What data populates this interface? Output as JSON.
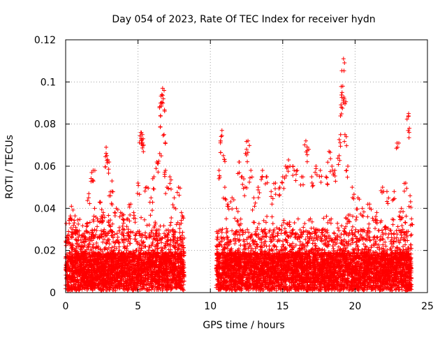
{
  "chart_data": {
    "type": "scatter",
    "title": "Day 054 of 2023, Rate Of TEC Index for receiver hydn",
    "xlabel": "GPS time / hours",
    "ylabel": "ROTI / TECUs",
    "xlim": [
      0,
      25
    ],
    "ylim": [
      0,
      0.12
    ],
    "xticks": [
      0,
      5,
      10,
      15,
      20,
      25
    ],
    "xtick_labels": [
      "0",
      "5",
      "10",
      "15",
      "20",
      "25"
    ],
    "yticks": [
      0,
      0.02,
      0.04,
      0.06,
      0.08,
      0.1,
      0.12
    ],
    "ytick_labels": [
      "0",
      "0.02",
      "0.04",
      "0.06",
      "0.08",
      "0.1",
      "0.12"
    ],
    "grid": true,
    "marker": "+",
    "color": "#ff0000",
    "series": [
      {
        "segments": [
          [
            0.0,
            8.2
          ],
          [
            10.4,
            23.9
          ]
        ],
        "points": [
          [
            0.1,
            0.026
          ],
          [
            0.2,
            0.029
          ],
          [
            0.3,
            0.035
          ],
          [
            0.4,
            0.041
          ],
          [
            0.5,
            0.03
          ],
          [
            0.7,
            0.031
          ],
          [
            0.9,
            0.025
          ],
          [
            1.1,
            0.027
          ],
          [
            1.3,
            0.024
          ],
          [
            1.5,
            0.033
          ],
          [
            1.6,
            0.047
          ],
          [
            1.8,
            0.057
          ],
          [
            1.9,
            0.058
          ],
          [
            2.0,
            0.04
          ],
          [
            2.2,
            0.035
          ],
          [
            2.4,
            0.043
          ],
          [
            2.6,
            0.038
          ],
          [
            2.8,
            0.069
          ],
          [
            2.85,
            0.065
          ],
          [
            3.0,
            0.062
          ],
          [
            3.1,
            0.046
          ],
          [
            3.2,
            0.053
          ],
          [
            3.5,
            0.04
          ],
          [
            3.8,
            0.038
          ],
          [
            4.0,
            0.033
          ],
          [
            4.3,
            0.035
          ],
          [
            4.5,
            0.042
          ],
          [
            4.7,
            0.038
          ],
          [
            5.0,
            0.052
          ],
          [
            5.2,
            0.076
          ],
          [
            5.3,
            0.075
          ],
          [
            5.35,
            0.073
          ],
          [
            5.4,
            0.07
          ],
          [
            5.6,
            0.05
          ],
          [
            5.9,
            0.045
          ],
          [
            6.1,
            0.055
          ],
          [
            6.3,
            0.062
          ],
          [
            6.5,
            0.066
          ],
          [
            6.55,
            0.084
          ],
          [
            6.6,
            0.09
          ],
          [
            6.65,
            0.094
          ],
          [
            6.7,
            0.097
          ],
          [
            6.75,
            0.092
          ],
          [
            6.8,
            0.075
          ],
          [
            6.9,
            0.058
          ],
          [
            7.0,
            0.05
          ],
          [
            7.2,
            0.055
          ],
          [
            7.5,
            0.045
          ],
          [
            7.8,
            0.05
          ],
          [
            8.0,
            0.038
          ],
          [
            10.6,
            0.058
          ],
          [
            10.7,
            0.072
          ],
          [
            10.8,
            0.077
          ],
          [
            10.9,
            0.065
          ],
          [
            11.0,
            0.05
          ],
          [
            11.2,
            0.042
          ],
          [
            11.5,
            0.045
          ],
          [
            11.8,
            0.04
          ],
          [
            12.0,
            0.062
          ],
          [
            12.2,
            0.055
          ],
          [
            12.4,
            0.05
          ],
          [
            12.5,
            0.068
          ],
          [
            12.6,
            0.072
          ],
          [
            12.8,
            0.058
          ],
          [
            13.0,
            0.045
          ],
          [
            13.3,
            0.05
          ],
          [
            13.6,
            0.058
          ],
          [
            13.9,
            0.055
          ],
          [
            14.2,
            0.048
          ],
          [
            14.5,
            0.052
          ],
          [
            14.8,
            0.05
          ],
          [
            15.0,
            0.055
          ],
          [
            15.2,
            0.06
          ],
          [
            15.4,
            0.063
          ],
          [
            15.7,
            0.06
          ],
          [
            16.0,
            0.058
          ],
          [
            16.3,
            0.055
          ],
          [
            16.6,
            0.072
          ],
          [
            16.8,
            0.068
          ],
          [
            17.0,
            0.055
          ],
          [
            17.3,
            0.06
          ],
          [
            17.6,
            0.058
          ],
          [
            18.0,
            0.055
          ],
          [
            18.2,
            0.067
          ],
          [
            18.4,
            0.06
          ],
          [
            18.6,
            0.058
          ],
          [
            18.9,
            0.065
          ],
          [
            19.0,
            0.075
          ],
          [
            19.05,
            0.088
          ],
          [
            19.1,
            0.095
          ],
          [
            19.15,
            0.098
          ],
          [
            19.2,
            0.111
          ],
          [
            19.25,
            0.092
          ],
          [
            19.3,
            0.075
          ],
          [
            19.5,
            0.06
          ],
          [
            19.8,
            0.05
          ],
          [
            20.2,
            0.045
          ],
          [
            20.5,
            0.04
          ],
          [
            21.0,
            0.042
          ],
          [
            21.5,
            0.038
          ],
          [
            21.9,
            0.05
          ],
          [
            22.2,
            0.048
          ],
          [
            22.7,
            0.048
          ],
          [
            22.9,
            0.071
          ],
          [
            23.2,
            0.04
          ],
          [
            23.5,
            0.052
          ],
          [
            23.7,
            0.085
          ],
          [
            23.75,
            0.078
          ],
          [
            23.8,
            0.046
          ],
          [
            23.9,
            0.035
          ]
        ]
      }
    ]
  }
}
